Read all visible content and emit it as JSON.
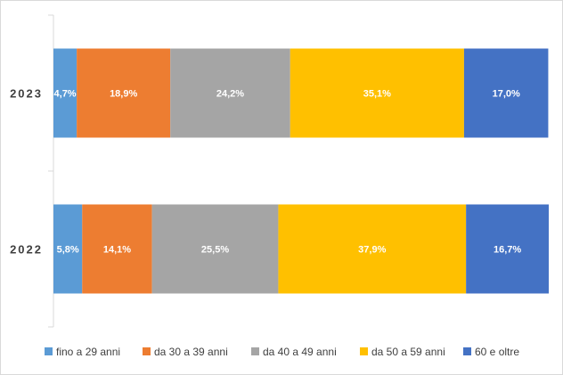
{
  "chart_data": {
    "type": "bar",
    "orientation": "horizontal",
    "stacked": "percent",
    "categories": [
      "2023",
      "2022"
    ],
    "series": [
      {
        "name": "fino a 29 anni",
        "color": "#5b9bd5",
        "values": [
          4.7,
          5.8
        ],
        "labels": [
          "4,7%",
          "5,8%"
        ]
      },
      {
        "name": "da 30 a 39 anni",
        "color": "#ed7d31",
        "values": [
          18.9,
          14.1
        ],
        "labels": [
          "18,9%",
          "14,1%"
        ]
      },
      {
        "name": "da 40 a 49 anni",
        "color": "#a5a5a5",
        "values": [
          24.2,
          25.5
        ],
        "labels": [
          "24,2%",
          "25,5%"
        ]
      },
      {
        "name": "da 50 a 59 anni",
        "color": "#ffc000",
        "values": [
          35.1,
          37.9
        ],
        "labels": [
          "35,1%",
          "37,9%"
        ]
      },
      {
        "name": "60 e oltre",
        "color": "#4472c4",
        "values": [
          17.0,
          16.7
        ],
        "labels": [
          "17,0%",
          "16,7%"
        ]
      }
    ],
    "xlim": [
      0,
      100
    ],
    "grid": false,
    "legend": "bottom"
  }
}
